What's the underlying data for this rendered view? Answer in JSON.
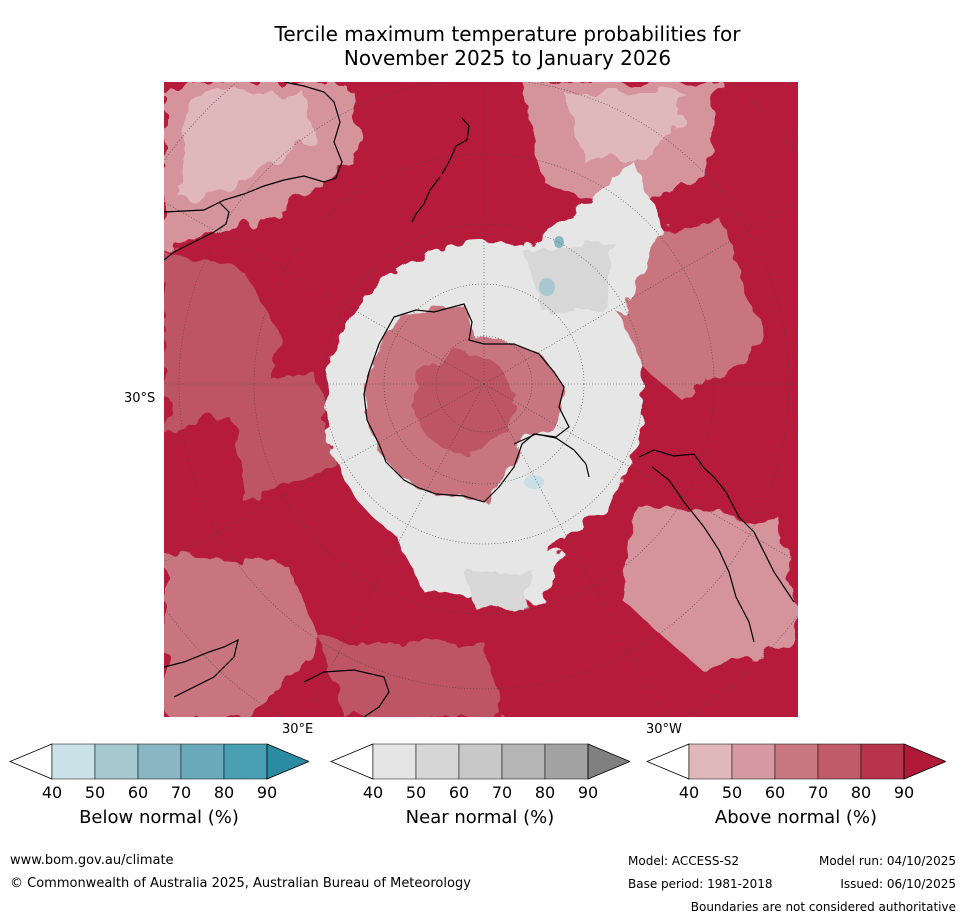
{
  "title": {
    "line1": "Tercile maximum temperature probabilities for",
    "line2": "November 2025 to January 2026"
  },
  "map": {
    "projection": "south-polar-stereographic",
    "labels": {
      "lat_left": "30°S",
      "lon_bottom_left": "30°E",
      "lon_bottom_right": "30°W"
    },
    "colors": {
      "above": [
        "#e0b7bb",
        "#d5939c",
        "#c87580",
        "#be5465",
        "#b71b3b"
      ],
      "near": [
        "#e6e6e6",
        "#d7d7d7",
        "#c8c8c8",
        "#b6b6b6",
        "#a4a4a4"
      ],
      "below": [
        "#c8e0e6",
        "#a9c7ce",
        "#8ab6c3"
      ]
    }
  },
  "colorbars": [
    {
      "id": "below",
      "label": "Below normal (%)",
      "ticks": [
        "40",
        "50",
        "60",
        "70",
        "80",
        "90"
      ],
      "colors": [
        "#ffffff",
        "#c9e1e7",
        "#a6c8cf",
        "#8ab6c3",
        "#6aaabb",
        "#48a0b2",
        "#2a8ba3"
      ]
    },
    {
      "id": "near",
      "label": "Near normal (%)",
      "ticks": [
        "40",
        "50",
        "60",
        "70",
        "80",
        "90"
      ],
      "colors": [
        "#ffffff",
        "#e5e5e5",
        "#d6d6d6",
        "#c8c8c8",
        "#b5b5b5",
        "#a2a2a2",
        "#808080"
      ]
    },
    {
      "id": "above",
      "label": "Above normal (%)",
      "ticks": [
        "40",
        "50",
        "60",
        "70",
        "80",
        "90"
      ],
      "colors": [
        "#ffffff",
        "#e0b8bc",
        "#d59aa1",
        "#c97881",
        "#c05c69",
        "#b8344c",
        "#b01a37"
      ]
    }
  ],
  "footer": {
    "website": "www.bom.gov.au/climate",
    "copyright": "© Commonwealth of Australia 2025, Australian Bureau of Meteorology",
    "model": "Model: ACCESS-S2",
    "model_run": "Model run: 04/10/2025",
    "base_period": "Base period: 1981-2018",
    "issued": "Issued: 06/10/2025",
    "disclaimer": "Boundaries are not considered authoritative"
  }
}
